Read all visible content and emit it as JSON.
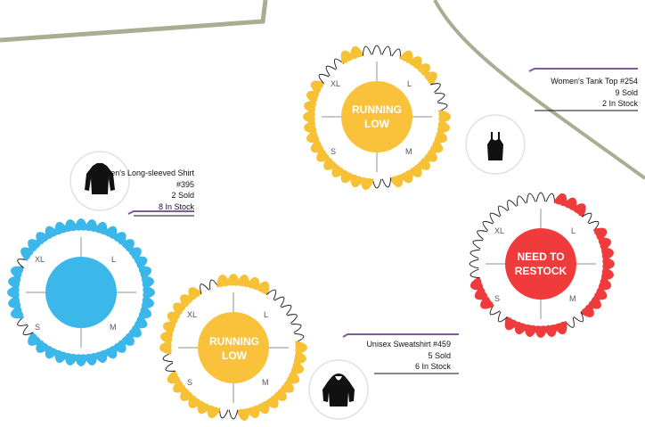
{
  "colors": {
    "in_stock_blue": "#3bb7ea",
    "in_stock_yellow": "#f7c136",
    "in_stock_red": "#ef3b3b",
    "sold_outline": "#222222",
    "center_blue": "#3bb7ea",
    "center_yellow": "#f9c23a",
    "center_red": "#ef3b3b",
    "leader_line": "#7b5aa6",
    "background_curve": "#a9ae92"
  },
  "products": [
    {
      "id": "longsleeve",
      "icon": "long-sleeve-shirt-icon",
      "title": "Men's Long-sleeved Shirt",
      "subtitle": "#395",
      "sold": "2 Sold",
      "in_stock": "8 In Stock",
      "status": "",
      "center_color": "#3bb7ea",
      "stock_color": "#3bb7ea",
      "sizes": [
        "XL",
        "L",
        "S",
        "M"
      ]
    },
    {
      "id": "sweatshirt",
      "icon": "hoodie-icon",
      "title": "Unisex Sweatshirt #459",
      "sold": "5 Sold",
      "in_stock": "6 In Stock",
      "status": "RUNNING LOW",
      "center_color": "#f9c23a",
      "stock_color": "#f7c136",
      "sizes": [
        "XL",
        "L",
        "S",
        "M"
      ]
    },
    {
      "id": "tanktop-ring",
      "title": "",
      "status": "RUNNING LOW",
      "center_color": "#f9c23a",
      "stock_color": "#f7c136",
      "sizes": [
        "XL",
        "L",
        "S",
        "M"
      ]
    },
    {
      "id": "tanktop",
      "icon": "tank-top-icon",
      "title": "Women's Tank Top #254",
      "sold": "9 Sold",
      "in_stock": "2 In Stock",
      "status": "NEED TO RESTOCK",
      "center_color": "#ef3b3b",
      "stock_color": "#ef3b3b",
      "sizes": [
        "XL",
        "L",
        "S",
        "M"
      ]
    }
  ]
}
